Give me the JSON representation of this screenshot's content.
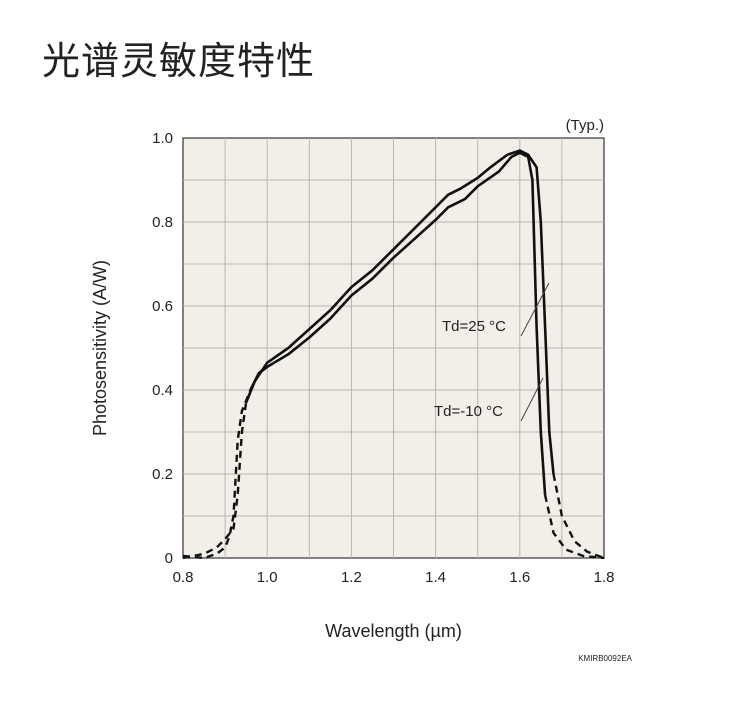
{
  "page": {
    "title": "光谱灵敏度特性"
  },
  "chart_data": {
    "type": "line",
    "xlabel": "Wavelength (µm)",
    "ylabel": "Photosensitivity (A/W)",
    "xlim": [
      0.8,
      1.8
    ],
    "ylim": [
      0,
      1.0
    ],
    "x_ticks": [
      "0.8",
      "1.0",
      "1.2",
      "1.4",
      "1.6",
      "1.8"
    ],
    "y_ticks": [
      "0",
      "0.2",
      "0.4",
      "0.6",
      "0.8",
      "1.0"
    ],
    "grid": true,
    "background": "#f2efe9",
    "line_color": "#111111",
    "corner_note": "(Typ.)",
    "figure_code": "KMIRB0092EA",
    "series": [
      {
        "name": "Td=25 °C",
        "dashed": [
          [
            0.8,
            0.0
          ],
          [
            0.85,
            0.01
          ],
          [
            0.88,
            0.025
          ],
          [
            0.9,
            0.045
          ],
          [
            0.92,
            0.07
          ],
          [
            0.93,
            0.15
          ],
          [
            0.94,
            0.3
          ],
          [
            0.95,
            0.37
          ]
        ],
        "values": [
          [
            0.95,
            0.37
          ],
          [
            0.97,
            0.42
          ],
          [
            1.0,
            0.465
          ],
          [
            1.05,
            0.5
          ],
          [
            1.1,
            0.545
          ],
          [
            1.15,
            0.59
          ],
          [
            1.2,
            0.645
          ],
          [
            1.25,
            0.685
          ],
          [
            1.3,
            0.735
          ],
          [
            1.35,
            0.785
          ],
          [
            1.4,
            0.835
          ],
          [
            1.43,
            0.865
          ],
          [
            1.46,
            0.88
          ],
          [
            1.5,
            0.905
          ],
          [
            1.53,
            0.93
          ],
          [
            1.57,
            0.96
          ],
          [
            1.6,
            0.97
          ],
          [
            1.62,
            0.96
          ],
          [
            1.64,
            0.93
          ],
          [
            1.65,
            0.8
          ],
          [
            1.66,
            0.55
          ],
          [
            1.67,
            0.3
          ],
          [
            1.68,
            0.2
          ]
        ],
        "dashed_tail": [
          [
            1.68,
            0.2
          ],
          [
            1.7,
            0.1
          ],
          [
            1.73,
            0.04
          ],
          [
            1.76,
            0.015
          ],
          [
            1.8,
            0.0
          ]
        ]
      },
      {
        "name": "Td=-10 °C",
        "dashed": [
          [
            0.8,
            0.005
          ],
          [
            0.85,
            0.0
          ],
          [
            0.88,
            0.01
          ],
          [
            0.9,
            0.025
          ],
          [
            0.91,
            0.05
          ],
          [
            0.92,
            0.1
          ],
          [
            0.93,
            0.28
          ],
          [
            0.94,
            0.35
          ],
          [
            0.96,
            0.4
          ]
        ],
        "values": [
          [
            0.96,
            0.4
          ],
          [
            0.98,
            0.44
          ],
          [
            1.0,
            0.455
          ],
          [
            1.05,
            0.485
          ],
          [
            1.1,
            0.525
          ],
          [
            1.15,
            0.57
          ],
          [
            1.2,
            0.625
          ],
          [
            1.25,
            0.665
          ],
          [
            1.3,
            0.715
          ],
          [
            1.35,
            0.76
          ],
          [
            1.4,
            0.805
          ],
          [
            1.43,
            0.835
          ],
          [
            1.47,
            0.855
          ],
          [
            1.5,
            0.885
          ],
          [
            1.55,
            0.92
          ],
          [
            1.58,
            0.955
          ],
          [
            1.6,
            0.965
          ],
          [
            1.62,
            0.955
          ],
          [
            1.63,
            0.9
          ],
          [
            1.64,
            0.55
          ],
          [
            1.65,
            0.3
          ],
          [
            1.66,
            0.15
          ]
        ],
        "dashed_tail": [
          [
            1.66,
            0.15
          ],
          [
            1.68,
            0.06
          ],
          [
            1.71,
            0.02
          ],
          [
            1.75,
            0.005
          ],
          [
            1.8,
            0.0
          ]
        ]
      }
    ]
  }
}
